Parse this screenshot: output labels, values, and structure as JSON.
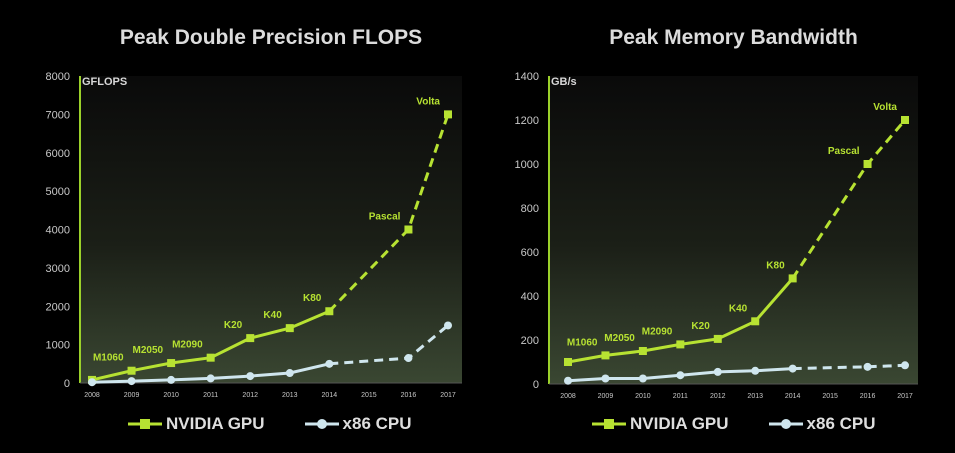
{
  "colors": {
    "gpu": "#b7e232",
    "cpu": "#cfe6ee",
    "axis_line": "#9bd12a",
    "tick_text": "#c8c8c8"
  },
  "chart_data": [
    {
      "type": "line",
      "title": "Peak Double Precision FLOPS",
      "unit_label": "GFLOPS",
      "ylim": [
        0,
        8000
      ],
      "yticks": [
        "0",
        "1000",
        "2000",
        "3000",
        "4000",
        "5000",
        "6000",
        "7000",
        "8000"
      ],
      "categories": [
        "2008",
        "2009",
        "2010",
        "2011",
        "2012",
        "2013",
        "2014",
        "2015",
        "2016",
        "2017"
      ],
      "series": [
        {
          "name": "NVIDIA GPU",
          "values": [
            80,
            320,
            520,
            660,
            1170,
            1430,
            1870,
            null,
            4000,
            7000
          ],
          "projected_from_index": 6,
          "annotations": [
            {
              "index": 1,
              "text": "M1060"
            },
            {
              "index": 2,
              "text": "M2050"
            },
            {
              "index": 3,
              "text": "M2090"
            },
            {
              "index": 4,
              "text": "K20"
            },
            {
              "index": 5,
              "text": "K40"
            },
            {
              "index": 6,
              "text": "K80"
            },
            {
              "index": 8,
              "text": "Pascal"
            },
            {
              "index": 9,
              "text": "Volta"
            }
          ]
        },
        {
          "name": "x86 CPU",
          "values": [
            20,
            50,
            80,
            120,
            180,
            260,
            500,
            null,
            650,
            1500
          ],
          "projected_from_index": 6
        }
      ]
    },
    {
      "type": "line",
      "title": "Peak Memory Bandwidth",
      "unit_label": "GB/s",
      "ylim": [
        0,
        1400
      ],
      "yticks": [
        "0",
        "200",
        "400",
        "600",
        "800",
        "1000",
        "1200",
        "1400"
      ],
      "categories": [
        "2008",
        "2009",
        "2010",
        "2011",
        "2012",
        "2013",
        "2014",
        "2015",
        "2016",
        "2017"
      ],
      "series": [
        {
          "name": "NVIDIA GPU",
          "values": [
            100,
            130,
            150,
            180,
            205,
            285,
            480,
            null,
            1000,
            1200
          ],
          "projected_from_index": 6,
          "annotations": [
            {
              "index": 1,
              "text": "M1060"
            },
            {
              "index": 2,
              "text": "M2050"
            },
            {
              "index": 3,
              "text": "M2090"
            },
            {
              "index": 4,
              "text": "K20"
            },
            {
              "index": 5,
              "text": "K40"
            },
            {
              "index": 6,
              "text": "K80"
            },
            {
              "index": 8,
              "text": "Pascal"
            },
            {
              "index": 9,
              "text": "Volta"
            }
          ]
        },
        {
          "name": "x86 CPU",
          "values": [
            15,
            25,
            25,
            40,
            55,
            60,
            70,
            null,
            78,
            85
          ],
          "projected_from_index": 6
        }
      ]
    }
  ]
}
